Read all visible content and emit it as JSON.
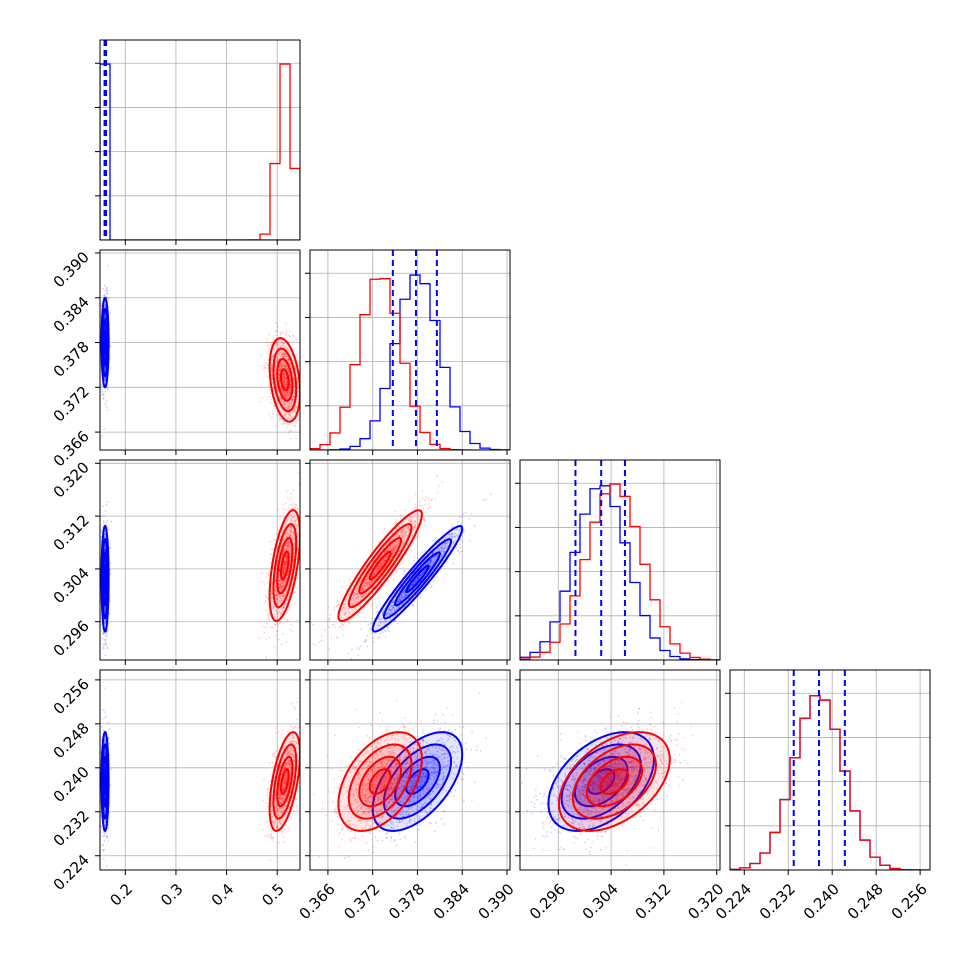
{
  "chart_data": {
    "type": "corner",
    "title": "",
    "grid": true,
    "params": [
      {
        "id": "p0",
        "ticks": [
          0.2,
          0.3,
          0.4,
          0.5
        ],
        "tick_labels": [
          "0.2",
          "0.3",
          "0.4",
          "0.5"
        ],
        "range": [
          0.15,
          0.545
        ]
      },
      {
        "id": "p1",
        "ticks": [
          0.366,
          0.372,
          0.378,
          0.384,
          0.39
        ],
        "tick_labels": [
          "0.366",
          "0.372",
          "0.378",
          "0.384",
          "0.390"
        ],
        "range": [
          0.3636,
          0.3904
        ]
      },
      {
        "id": "p2",
        "ticks": [
          0.296,
          0.304,
          0.312,
          0.32
        ],
        "tick_labels": [
          "0.296",
          "0.304",
          "0.312",
          "0.320"
        ],
        "range": [
          0.2902,
          0.3205
        ]
      },
      {
        "id": "p3",
        "ticks": [
          0.224,
          0.232,
          0.24,
          0.248,
          0.256
        ],
        "tick_labels": [
          "0.224",
          "0.232",
          "0.240",
          "0.248",
          "0.256"
        ],
        "range": [
          0.2214,
          0.2578
        ]
      }
    ],
    "series": [
      {
        "color": "#0000ff",
        "mean": [
          0.16,
          0.378,
          0.3025,
          0.2375
        ],
        "std": [
          0.0035,
          0.003,
          0.004,
          0.0045
        ],
        "quantiles": [
          [
            0.159,
            0.16,
            0.162
          ],
          [
            0.3747,
            0.3778,
            0.3806
          ],
          [
            0.2986,
            0.3025,
            0.3061
          ],
          [
            0.233,
            0.2376,
            0.2423
          ]
        ]
      },
      {
        "color": "#ff0000",
        "mean": [
          0.515,
          0.373,
          0.3045,
          0.2375
        ],
        "std": [
          0.015,
          0.0028,
          0.0042,
          0.0045
        ]
      }
    ],
    "correlations": [
      {
        "pair": [
          0,
          1
        ],
        "blue": 0.0,
        "red": -0.3
      },
      {
        "pair": [
          0,
          2
        ],
        "blue": 0.0,
        "red": 0.55
      },
      {
        "pair": [
          0,
          3
        ],
        "blue": 0.0,
        "red": 0.55
      },
      {
        "pair": [
          1,
          2
        ],
        "blue": 0.95,
        "red": 0.92
      },
      {
        "pair": [
          1,
          3
        ],
        "blue": 0.55,
        "red": 0.45
      },
      {
        "pair": [
          2,
          3
        ],
        "blue": 0.45,
        "red": 0.45
      }
    ],
    "quantile_lines": {
      "color": "#0000ff",
      "dash": true
    }
  }
}
